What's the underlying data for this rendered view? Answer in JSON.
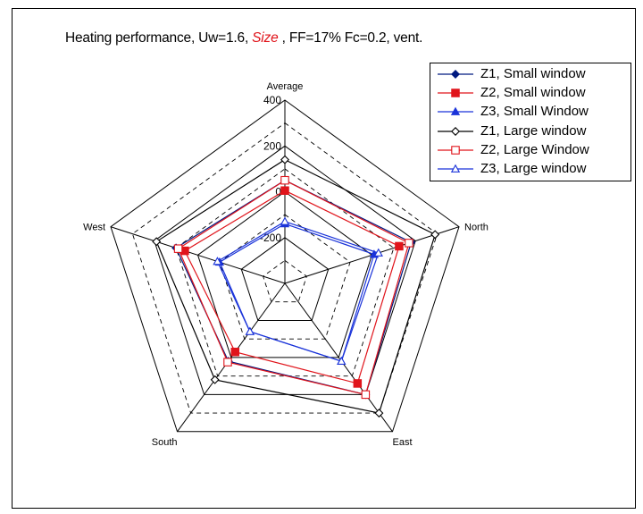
{
  "chart_data": {
    "type": "radar",
    "title_parts": {
      "before": "Heating performance, Uw=1.6, ",
      "highlight": "Size",
      "after": " , FF=17% Fc=0.2, vent."
    },
    "axes": [
      "Average",
      "North",
      "East",
      "South",
      "West"
    ],
    "ticks": [
      400,
      200,
      0,
      -200
    ],
    "rlim": [
      -400,
      400
    ],
    "grid": true,
    "legend_position": "top-right",
    "series": [
      {
        "name": "Z1, Small window",
        "color": "#001a80",
        "marker": "diamond-filled",
        "values": [
          50,
          180,
          200,
          20,
          100
        ]
      },
      {
        "name": "Z2, Small window",
        "color": "#e0141b",
        "marker": "square-filled",
        "values": [
          5,
          125,
          140,
          -30,
          60
        ]
      },
      {
        "name": "Z3, Small Window",
        "color": "#1a33d9",
        "marker": "triangle-filled",
        "values": [
          -140,
          10,
          20,
          -140,
          -100
        ]
      },
      {
        "name": "Z1, Large window",
        "color": "#000000",
        "marker": "diamond-open",
        "values": [
          140,
          290,
          300,
          120,
          190
        ]
      },
      {
        "name": "Z2, Large Window",
        "color": "#e0141b",
        "marker": "square-open",
        "values": [
          50,
          170,
          200,
          25,
          90
        ]
      },
      {
        "name": "Z3, Large window",
        "color": "#1a33d9",
        "marker": "triangle-open",
        "values": [
          -130,
          30,
          20,
          -140,
          -90
        ]
      }
    ]
  }
}
